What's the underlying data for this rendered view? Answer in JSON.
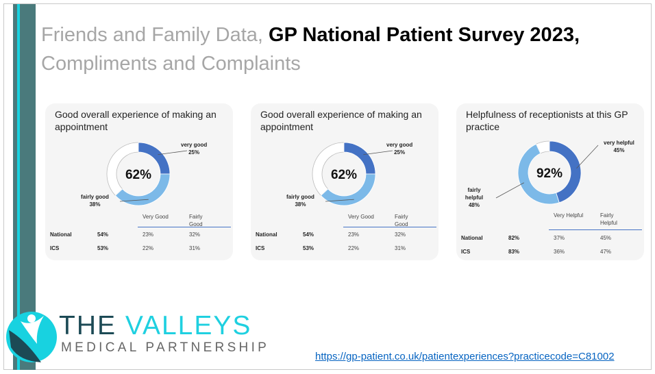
{
  "title": {
    "part1": "Friends and Family Data, ",
    "part2": "GP National Patient Survey 2023,",
    "part3": "Compliments and Complaints"
  },
  "colors": {
    "very": "#4472c4",
    "fairly": "#7cb9e8",
    "rest": "#ffffff"
  },
  "chart_data": [
    {
      "type": "pie",
      "title": "Good overall experience of making an appointment",
      "center_label": "62%",
      "slices": [
        {
          "name": "very good",
          "value": 25,
          "label": "very good",
          "pct": "25%"
        },
        {
          "name": "fairly good",
          "value": 38,
          "label": "fairly good",
          "pct": "38%"
        }
      ],
      "table": {
        "headers": [
          "Very Good",
          "Fairly Good"
        ],
        "rows": [
          {
            "name": "National",
            "total": "54%",
            "v1": "23%",
            "v2": "32%"
          },
          {
            "name": "ICS",
            "total": "53%",
            "v1": "22%",
            "v2": "31%"
          }
        ]
      }
    },
    {
      "type": "pie",
      "title": "Good overall experience of making an appointment",
      "center_label": "62%",
      "slices": [
        {
          "name": "very good",
          "value": 25,
          "label": "very good",
          "pct": "25%"
        },
        {
          "name": "fairly good",
          "value": 38,
          "label": "fairly good",
          "pct": "38%"
        }
      ],
      "table": {
        "headers": [
          "Very Good",
          "Fairly Good"
        ],
        "rows": [
          {
            "name": "National",
            "total": "54%",
            "v1": "23%",
            "v2": "32%"
          },
          {
            "name": "ICS",
            "total": "53%",
            "v1": "22%",
            "v2": "31%"
          }
        ]
      }
    },
    {
      "type": "pie",
      "title": "Helpfulness of receptionists at this GP practice",
      "center_label": "92%",
      "slices": [
        {
          "name": "very helpful",
          "value": 45,
          "label": "very helpful",
          "pct": "45%"
        },
        {
          "name": "fairly helpful",
          "value": 48,
          "label": "fairly helpful",
          "pct": "48%"
        }
      ],
      "table": {
        "headers": [
          "Very Helpful",
          "Fairly Helpful"
        ],
        "rows": [
          {
            "name": "National",
            "total": "82%",
            "v1": "37%",
            "v2": "45%"
          },
          {
            "name": "ICS",
            "total": "83%",
            "v1": "36%",
            "v2": "47%"
          }
        ]
      }
    }
  ],
  "logo": {
    "word1": "THE ",
    "word2": "VALLEYS",
    "sub": "MEDICAL PARTNERSHIP"
  },
  "link": "https://gp-patient.co.uk/patientexperiences?practicecode=C81002"
}
